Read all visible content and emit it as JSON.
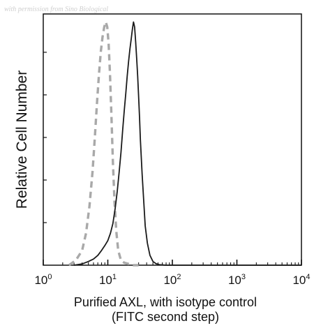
{
  "watermark": "with permission from Sino Biological",
  "chart_data": {
    "type": "line",
    "xscale": "log",
    "xlim": [
      1,
      10000
    ],
    "ylim": [
      0,
      1
    ],
    "xticks": [
      {
        "value": 1,
        "base": "10",
        "exp": "0"
      },
      {
        "value": 10,
        "base": "10",
        "exp": "1"
      },
      {
        "value": 100,
        "base": "10",
        "exp": "2"
      },
      {
        "value": 1000,
        "base": "10",
        "exp": "3"
      },
      {
        "value": 10000,
        "base": "10",
        "exp": "4"
      }
    ],
    "xlabel_line1": "Purified AXL, with isotype control",
    "xlabel_line2": "(FITC second step)",
    "ylabel": "Relative Cell Number",
    "grid": false,
    "series": [
      {
        "style": "dashed",
        "color": "#a9a9a9",
        "x": [
          2.5,
          3.2,
          4.0,
          4.6,
          5.2,
          5.8,
          6.3,
          6.8,
          7.3,
          7.8,
          8.3,
          8.8,
          9.3,
          9.8,
          10.3,
          10.8,
          11.4,
          12.0,
          12.7,
          13.5,
          14.5,
          16.0,
          18.0,
          21.0,
          25.0,
          30.0
        ],
        "y": [
          0.0,
          0.02,
          0.06,
          0.13,
          0.24,
          0.38,
          0.52,
          0.66,
          0.78,
          0.87,
          0.93,
          0.97,
          0.99,
          0.97,
          0.9,
          0.78,
          0.6,
          0.42,
          0.26,
          0.14,
          0.06,
          0.02,
          0.01,
          0.005,
          0.0,
          0.0
        ]
      },
      {
        "style": "solid",
        "color": "#1a1a1a",
        "x": [
          3.0,
          4.0,
          5.0,
          6.0,
          7.0,
          8.0,
          9.0,
          10.0,
          11.0,
          12.0,
          13.0,
          14.0,
          15.0,
          16.0,
          17.0,
          18.0,
          19.0,
          20.0,
          21.0,
          22.0,
          23.0,
          24.0,
          25.0,
          26.0,
          27.0,
          28.0,
          29.0,
          30.0,
          31.0,
          32.0,
          34.0,
          36.0,
          38.0,
          41.0,
          45.0,
          50.0,
          56.0,
          63.0,
          80.0,
          120.0,
          10000.0
        ],
        "y": [
          0.0,
          0.005,
          0.015,
          0.025,
          0.04,
          0.06,
          0.08,
          0.1,
          0.13,
          0.17,
          0.23,
          0.3,
          0.38,
          0.46,
          0.55,
          0.63,
          0.7,
          0.77,
          0.83,
          0.88,
          0.92,
          0.96,
          0.99,
          0.97,
          0.91,
          0.84,
          0.77,
          0.69,
          0.6,
          0.51,
          0.37,
          0.26,
          0.16,
          0.09,
          0.04,
          0.015,
          0.006,
          0.002,
          0.0,
          0.0,
          0.0
        ]
      }
    ]
  }
}
